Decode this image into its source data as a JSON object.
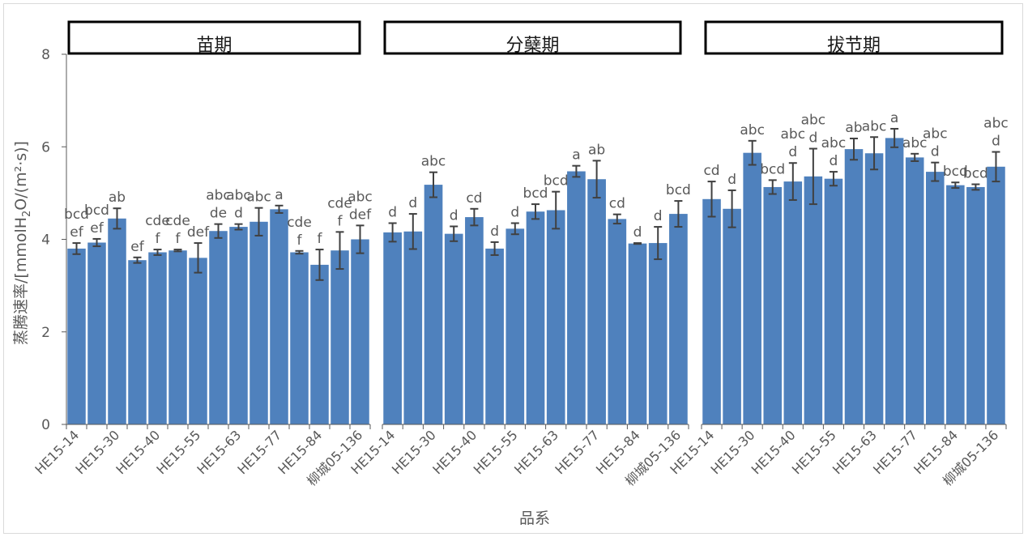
{
  "chart_data": {
    "type": "bar",
    "ylabel": "蒸腾速率/[mmolH2O/(m²·s)]",
    "ylabel_parts": {
      "pre": "蒸腾速率/[mmolH",
      "sub": "2",
      "post": "O/(m²·s)]"
    },
    "xlabel": "品系",
    "ylim": [
      0,
      8
    ],
    "yticks": [
      "0",
      "2",
      "4",
      "6",
      "8"
    ],
    "bar_color": "#4f81bd",
    "error_color": "#404040",
    "panels": [
      {
        "title": "苗期",
        "bars": [
          {
            "value": 3.8,
            "err": 0.12,
            "label": [
              "bcd",
              "ef"
            ]
          },
          {
            "value": 3.93,
            "err": 0.08,
            "label": [
              "bcd",
              "ef"
            ]
          },
          {
            "value": 4.45,
            "err": 0.22,
            "label": [
              "ab"
            ]
          },
          {
            "value": 3.55,
            "err": 0.06,
            "label": [
              "ef"
            ]
          },
          {
            "value": 3.72,
            "err": 0.06,
            "label": [
              "cde",
              "f"
            ]
          },
          {
            "value": 3.76,
            "err": 0.02,
            "label": [
              "cde",
              "f"
            ]
          },
          {
            "value": 3.6,
            "err": 0.32,
            "label": [
              "def"
            ]
          },
          {
            "value": 4.18,
            "err": 0.15,
            "label": [
              "abc",
              "de"
            ]
          },
          {
            "value": 4.27,
            "err": 0.06,
            "label": [
              "abc",
              "d"
            ]
          },
          {
            "value": 4.38,
            "err": 0.3,
            "label": [
              "abc"
            ]
          },
          {
            "value": 4.65,
            "err": 0.08,
            "label": [
              "a"
            ]
          },
          {
            "value": 3.72,
            "err": 0.03,
            "label": [
              "cde",
              "f"
            ]
          },
          {
            "value": 3.45,
            "err": 0.33,
            "label": [
              "f"
            ]
          },
          {
            "value": 3.76,
            "err": 0.4,
            "label": [
              "cde",
              "f"
            ]
          },
          {
            "value": 4.0,
            "err": 0.3,
            "label": [
              "abc",
              "def"
            ]
          }
        ]
      },
      {
        "title": "分蘖期",
        "bars": [
          {
            "value": 4.15,
            "err": 0.2,
            "label": [
              "d"
            ]
          },
          {
            "value": 4.17,
            "err": 0.38,
            "label": [
              "d"
            ]
          },
          {
            "value": 5.18,
            "err": 0.27,
            "label": [
              "abc"
            ]
          },
          {
            "value": 4.12,
            "err": 0.16,
            "label": [
              "d"
            ]
          },
          {
            "value": 4.48,
            "err": 0.18,
            "label": [
              "cd"
            ]
          },
          {
            "value": 3.8,
            "err": 0.14,
            "label": [
              "d"
            ]
          },
          {
            "value": 4.23,
            "err": 0.12,
            "label": [
              "d"
            ]
          },
          {
            "value": 4.6,
            "err": 0.16,
            "label": [
              "bcd"
            ]
          },
          {
            "value": 4.63,
            "err": 0.4,
            "label": [
              "bcd"
            ]
          },
          {
            "value": 5.47,
            "err": 0.12,
            "label": [
              "a"
            ]
          },
          {
            "value": 5.3,
            "err": 0.4,
            "label": [
              "ab"
            ]
          },
          {
            "value": 4.44,
            "err": 0.1,
            "label": [
              "cd"
            ]
          },
          {
            "value": 3.91,
            "err": 0.01,
            "label": [
              "d"
            ]
          },
          {
            "value": 3.92,
            "err": 0.35,
            "label": [
              "d"
            ]
          },
          {
            "value": 4.55,
            "err": 0.28,
            "label": [
              "bcd"
            ]
          }
        ]
      },
      {
        "title": "拔节期",
        "bars": [
          {
            "value": 4.87,
            "err": 0.38,
            "label": [
              "cd"
            ]
          },
          {
            "value": 4.66,
            "err": 0.4,
            "label": [
              "d"
            ]
          },
          {
            "value": 5.87,
            "err": 0.26,
            "label": [
              "abc"
            ]
          },
          {
            "value": 5.13,
            "err": 0.15,
            "label": [
              "bcd"
            ]
          },
          {
            "value": 5.25,
            "err": 0.4,
            "label": [
              "abc",
              "d"
            ]
          },
          {
            "value": 5.36,
            "err": 0.6,
            "label": [
              "abc",
              "d"
            ]
          },
          {
            "value": 5.31,
            "err": 0.15,
            "label": [
              "abc",
              "d"
            ]
          },
          {
            "value": 5.95,
            "err": 0.23,
            "label": [
              "ab"
            ]
          },
          {
            "value": 5.86,
            "err": 0.35,
            "label": [
              "abc"
            ]
          },
          {
            "value": 6.19,
            "err": 0.2,
            "label": [
              "a"
            ]
          },
          {
            "value": 5.77,
            "err": 0.08,
            "label": [
              "abc"
            ]
          },
          {
            "value": 5.46,
            "err": 0.2,
            "label": [
              "abc",
              "d"
            ]
          },
          {
            "value": 5.17,
            "err": 0.06,
            "label": [
              "bcd"
            ]
          },
          {
            "value": 5.13,
            "err": 0.06,
            "label": [
              "bcd"
            ]
          },
          {
            "value": 5.57,
            "err": 0.32,
            "label": [
              "abc",
              "d"
            ]
          }
        ]
      }
    ],
    "x_tick_labels": [
      "HE15-14",
      "HE15-30",
      "HE15-40",
      "HE15-55",
      "HE15-63",
      "HE15-77",
      "HE15-84",
      "柳城05-136",
      "HE15-14",
      "HE15-30",
      "HE15-40",
      "HE15-55",
      "HE15-63",
      "HE15-77",
      "HE15-84",
      "柳城05-136",
      "HE15-14",
      "HE15-30",
      "HE15-40",
      "HE15-55",
      "HE15-63",
      "HE15-77",
      "HE15-84",
      "柳城05-136"
    ]
  }
}
